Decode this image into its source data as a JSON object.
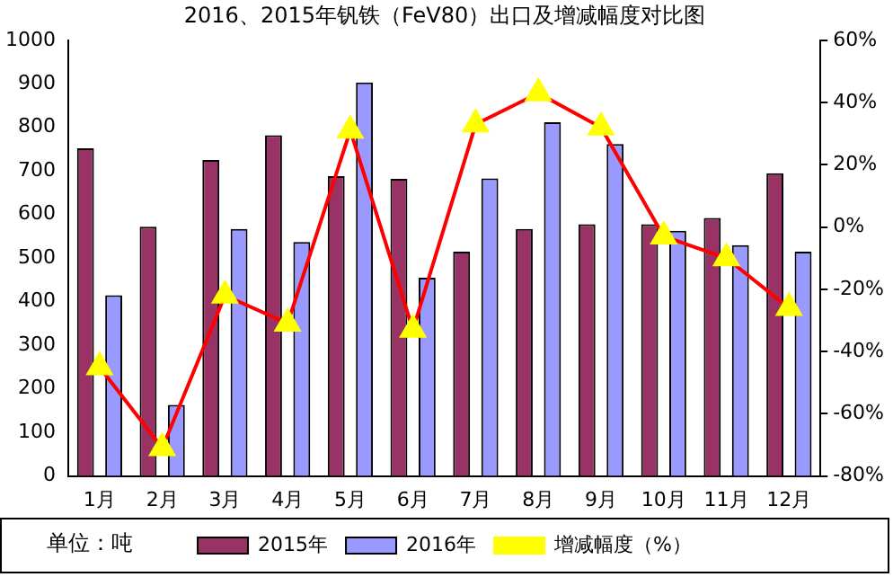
{
  "chart_data": {
    "type": "bar",
    "title": "2016、2015年钒铁（FeV80）出口及增减幅度对比图",
    "categories": [
      "1月",
      "2月",
      "3月",
      "4月",
      "5月",
      "6月",
      "7月",
      "8月",
      "9月",
      "10月",
      "11月",
      "12月"
    ],
    "series": [
      {
        "name": "2015年",
        "color": "#993366",
        "values": [
          752,
          572,
          725,
          782,
          688,
          682,
          515,
          567,
          578,
          578,
          592,
          695
        ]
      },
      {
        "name": "2016年",
        "color": "#9999ff",
        "values": [
          415,
          163,
          567,
          537,
          903,
          455,
          683,
          812,
          762,
          563,
          530,
          515
        ]
      },
      {
        "name": "增减幅度（%）",
        "type": "line",
        "axis": "y2",
        "color": "#ff0000",
        "marker": "triangle",
        "values": [
          -45,
          -71,
          -22,
          -31,
          31,
          -33,
          33,
          43,
          32,
          -3,
          -10,
          -26
        ]
      }
    ],
    "ylim": [
      0,
      1000
    ],
    "yticks": [
      0,
      100,
      200,
      300,
      400,
      500,
      600,
      700,
      800,
      900,
      1000
    ],
    "y2lim": [
      -80,
      60
    ],
    "y2ticks": [
      {
        "value": -80,
        "label": "-80%"
      },
      {
        "value": -60,
        "label": "-60%"
      },
      {
        "value": -40,
        "label": "-40%"
      },
      {
        "value": -20,
        "label": "-20%"
      },
      {
        "value": 0,
        "label": "0%"
      },
      {
        "value": 20,
        "label": "20%"
      },
      {
        "value": 40,
        "label": "40%"
      },
      {
        "value": 60,
        "label": "60%"
      }
    ],
    "grid": false,
    "legend": "bottom",
    "annotations": [
      "单位：吨"
    ]
  }
}
